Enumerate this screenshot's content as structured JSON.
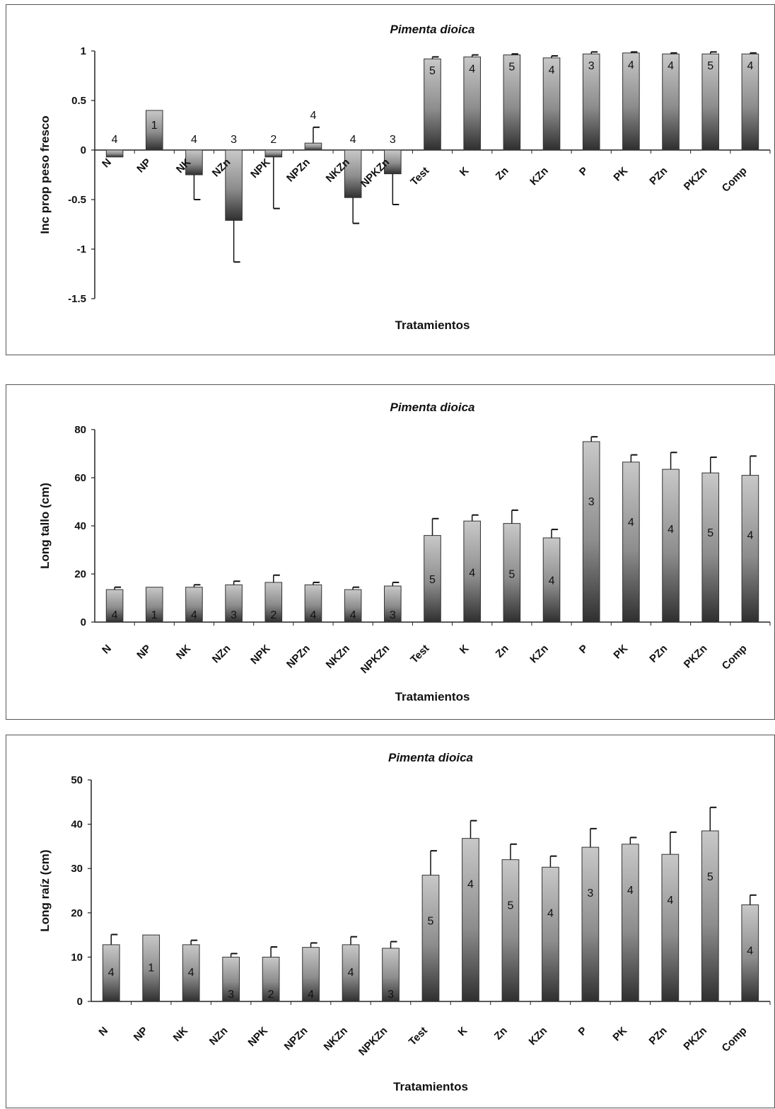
{
  "chart_data": [
    {
      "type": "bar",
      "title": "Pimenta dioica",
      "xlabel": "Tratamientos",
      "ylabel": "Inc prop peso fresco",
      "ylim": [
        -1.5,
        1
      ],
      "yticks": [
        "1",
        "0.5",
        "0",
        "-0.5",
        "-1",
        "-1.5"
      ],
      "grid": false,
      "categories": [
        "N",
        "NP",
        "NK",
        "NZn",
        "NPK",
        "NPZn",
        "NKZn",
        "NPKZn",
        "Test",
        "K",
        "Zn",
        "KZn",
        "P",
        "PK",
        "PZn",
        "PKZn",
        "Comp"
      ],
      "values": [
        -0.07,
        0.4,
        -0.25,
        -0.71,
        -0.07,
        0.07,
        -0.48,
        -0.24,
        0.92,
        0.94,
        0.96,
        0.93,
        0.97,
        0.98,
        0.97,
        0.97,
        0.97
      ],
      "error": [
        0.0,
        0.0,
        0.25,
        0.42,
        0.52,
        0.16,
        0.26,
        0.31,
        0.02,
        0.02,
        0.01,
        0.02,
        0.02,
        0.01,
        0.01,
        0.02,
        0.01
      ],
      "n": [
        "4",
        "1",
        "4",
        "3",
        "2",
        "4",
        "4",
        "3",
        "5",
        "4",
        "5",
        "4",
        "3",
        "4",
        "4",
        "5",
        "4"
      ]
    },
    {
      "type": "bar",
      "title": "Pimenta dioica",
      "xlabel": "Tratamientos",
      "ylabel": "Long tallo (cm)",
      "ylim": [
        0,
        80
      ],
      "yticks": [
        "80",
        "60",
        "40",
        "20",
        "0"
      ],
      "grid": false,
      "categories": [
        "N",
        "NP",
        "NK",
        "NZn",
        "NPK",
        "NPZn",
        "NKZn",
        "NPKZn",
        "Test",
        "K",
        "Zn",
        "KZn",
        "P",
        "PK",
        "PZn",
        "PKZn",
        "Comp"
      ],
      "values": [
        13.5,
        14.5,
        14.5,
        15.5,
        16.5,
        15.5,
        13.5,
        15,
        36,
        42,
        41,
        35,
        75,
        66.5,
        63.5,
        62,
        61
      ],
      "error": [
        1,
        0,
        1,
        1.5,
        3,
        1,
        1,
        1.5,
        7,
        2.5,
        5.5,
        3.5,
        2,
        3,
        7,
        6.5,
        8
      ],
      "n": [
        "4",
        "1",
        "4",
        "3",
        "2",
        "4",
        "4",
        "3",
        "5",
        "4",
        "5",
        "4",
        "3",
        "4",
        "4",
        "5",
        "4"
      ]
    },
    {
      "type": "bar",
      "title": "Pimenta dioica",
      "xlabel": "Tratamientos",
      "ylabel": "Long raíz (cm)",
      "ylim": [
        0,
        50
      ],
      "yticks": [
        "50",
        "40",
        "30",
        "20",
        "10",
        "0"
      ],
      "grid": false,
      "categories": [
        "N",
        "NP",
        "NK",
        "NZn",
        "NPK",
        "NPZn",
        "NKZn",
        "NPKZn",
        "Test",
        "K",
        "Zn",
        "KZn",
        "P",
        "PK",
        "PZn",
        "PKZn",
        "Comp"
      ],
      "values": [
        12.8,
        15,
        12.8,
        10,
        10,
        12.2,
        12.8,
        12,
        28.5,
        36.8,
        32,
        30.3,
        34.8,
        35.5,
        33.2,
        38.5,
        21.8
      ],
      "error": [
        2.3,
        0,
        1,
        0.8,
        2.3,
        1,
        1.8,
        1.5,
        5.5,
        4,
        3.5,
        2.5,
        4.2,
        1.5,
        5,
        5.3,
        2.2
      ],
      "n": [
        "4",
        "1",
        "4",
        "3",
        "2",
        "4",
        "4",
        "3",
        "5",
        "4",
        "5",
        "4",
        "3",
        "4",
        "4",
        "5",
        "4"
      ]
    }
  ]
}
